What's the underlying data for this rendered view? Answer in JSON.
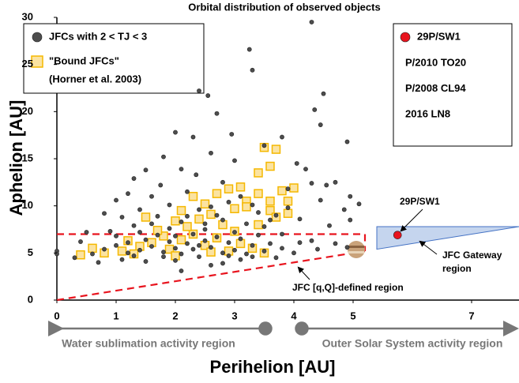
{
  "chart_data": {
    "type": "scatter",
    "title": "Orbital distribution of observed objects",
    "x_label": "Perihelion [AU]",
    "y_label": "Aphelion [AU]",
    "xlim": [
      0,
      7.8
    ],
    "ylim": [
      0,
      30
    ],
    "xticks": [
      0,
      1,
      2,
      3,
      4,
      5,
      7
    ],
    "yticks": [
      0,
      5,
      10,
      15,
      20,
      25,
      30
    ],
    "series": [
      {
        "name": "JFCs with 2 < TJ < 3",
        "color": "#4d4d4d",
        "marker": "circle",
        "x": [
          4.3,
          3.25,
          3.3,
          2.4,
          2.55,
          4.5,
          4.35,
          2.7,
          4.45,
          2.0,
          3.8,
          4.9,
          2.3,
          2.95,
          3.5,
          2.6,
          1.8,
          3.0,
          4.05,
          2.1,
          1.5,
          2.35,
          4.2,
          1.3,
          4.3,
          4.55,
          2.8,
          1.75,
          3.9,
          4.7,
          4.95,
          5.1,
          4.45,
          4.85,
          4.95,
          1.2,
          1.0,
          1.6,
          2.2,
          3.1,
          2.9,
          3.3,
          2.6,
          1.9,
          1.4,
          2.4,
          3.7,
          4.1,
          4.6,
          0.8,
          1.1,
          1.7,
          2.1,
          2.8,
          3.2,
          3.5,
          1.3,
          0.5,
          0.9,
          2.5,
          3.0,
          3.8,
          4.3,
          4.7,
          4.9,
          0.0,
          0.0,
          0.3,
          0.6,
          0.8,
          1.0,
          1.2,
          1.4,
          1.5,
          1.6,
          1.7,
          1.8,
          1.9,
          2.0,
          2.0,
          2.1,
          2.2,
          2.3,
          2.3,
          2.4,
          2.5,
          2.6,
          2.7,
          2.8,
          2.9,
          3.0,
          3.1,
          3.2,
          3.3,
          3.4,
          3.5,
          3.6,
          3.8,
          4.0,
          4.1,
          4.4,
          0.7,
          1.1,
          1.3,
          2.6,
          2.1,
          1.5,
          2.0,
          2.8,
          3.1,
          1.9,
          2.2,
          2.7,
          3.4,
          1.6,
          0.4,
          1.0,
          1.2,
          1.8,
          2.4,
          2.9,
          3.7,
          3.3,
          1.4,
          2.5,
          3.6,
          3.9
        ],
        "y": [
          29.5,
          26.6,
          24.4,
          22.2,
          21.7,
          21.9,
          20.2,
          19.8,
          18.6,
          17.8,
          17.3,
          16.8,
          17.3,
          17.6,
          16.4,
          15.6,
          15.2,
          14.8,
          14.5,
          13.9,
          13.8,
          13.3,
          13.9,
          12.9,
          12.4,
          12.2,
          12.5,
          12.2,
          11.8,
          12.5,
          11.0,
          10.2,
          10.6,
          9.6,
          8.5,
          11.3,
          10.6,
          11.0,
          11.5,
          11.0,
          10.4,
          10.1,
          9.9,
          10.1,
          9.6,
          9.6,
          9.0,
          8.6,
          7.9,
          9.2,
          8.8,
          8.9,
          8.3,
          8.5,
          8.1,
          7.8,
          7.9,
          7.2,
          7.3,
          7.5,
          7.2,
          7.0,
          6.3,
          6.0,
          5.6,
          5.2,
          4.9,
          4.5,
          4.9,
          5.4,
          5.8,
          6.1,
          5.3,
          6.4,
          5.7,
          6.9,
          5.1,
          6.2,
          5.5,
          6.8,
          4.9,
          6.0,
          5.4,
          7.0,
          4.6,
          6.3,
          5.6,
          6.7,
          5.0,
          6.1,
          5.3,
          6.5,
          4.9,
          5.8,
          6.9,
          5.2,
          6.0,
          5.5,
          5.0,
          6.1,
          5.4,
          4.0,
          4.3,
          4.7,
          3.7,
          3.1,
          4.1,
          4.2,
          3.9,
          4.3,
          7.6,
          8.9,
          9.0,
          9.3,
          8.1,
          6.2,
          6.8,
          5.0,
          4.6,
          5.8,
          4.7,
          4.5,
          4.6,
          7.2,
          8.1,
          8.5,
          9.8
        ]
      },
      {
        "name": "\"Bound JFCs\"",
        "name_note": "(Horner et al. 2003)",
        "color": "#f5b800",
        "fill": "#fbe3a1",
        "marker": "square",
        "x": [
          0.4,
          0.8,
          1.1,
          1.4,
          1.6,
          1.9,
          2.1,
          2.3,
          2.5,
          2.7,
          2.9,
          3.1,
          3.3,
          3.5,
          1.3,
          2.0,
          2.6,
          1.8,
          2.2,
          2.4,
          2.6,
          2.1,
          1.7,
          2.8,
          2.5,
          2.3,
          2.9,
          3.5,
          3.7,
          3.6,
          3.1,
          3.4,
          3.4,
          3.2,
          3.0,
          3.6,
          3.8,
          3.9,
          3.6,
          3.9,
          3.7,
          3.4,
          3.2,
          4.0,
          2.7,
          1.5,
          2.0,
          3.0,
          1.2,
          0.6
        ],
        "y": [
          4.8,
          5.0,
          5.2,
          5.7,
          6.1,
          5.4,
          6.4,
          7.0,
          5.8,
          6.6,
          5.2,
          6.0,
          5.5,
          5.0,
          4.9,
          4.7,
          5.1,
          6.8,
          7.8,
          8.6,
          9.1,
          9.5,
          7.4,
          8.0,
          10.2,
          11.0,
          11.8,
          16.2,
          16.0,
          14.2,
          12.0,
          13.5,
          11.3,
          10.5,
          9.7,
          10.5,
          11.6,
          10.5,
          9.5,
          9.2,
          8.8,
          8.0,
          9.9,
          11.9,
          11.3,
          8.8,
          8.4,
          7.3,
          6.3,
          5.5
        ]
      },
      {
        "name": "29P/SW1",
        "color": "#e8141e",
        "marker": "circle",
        "x": [
          5.75
        ],
        "y": [
          6.9
        ]
      }
    ],
    "legend_extra": [
      "P/2010 TO20",
      "P/2008 CL94",
      "2016 LN8"
    ],
    "annotations": {
      "sw1": "29P/SW1",
      "gateway": [
        "JFC Gateway",
        "region"
      ],
      "jfc_region": "JFC [q,Q]-defined region",
      "water": "Water sublimation activity region",
      "outer": "Outer Solar System activity region"
    }
  }
}
